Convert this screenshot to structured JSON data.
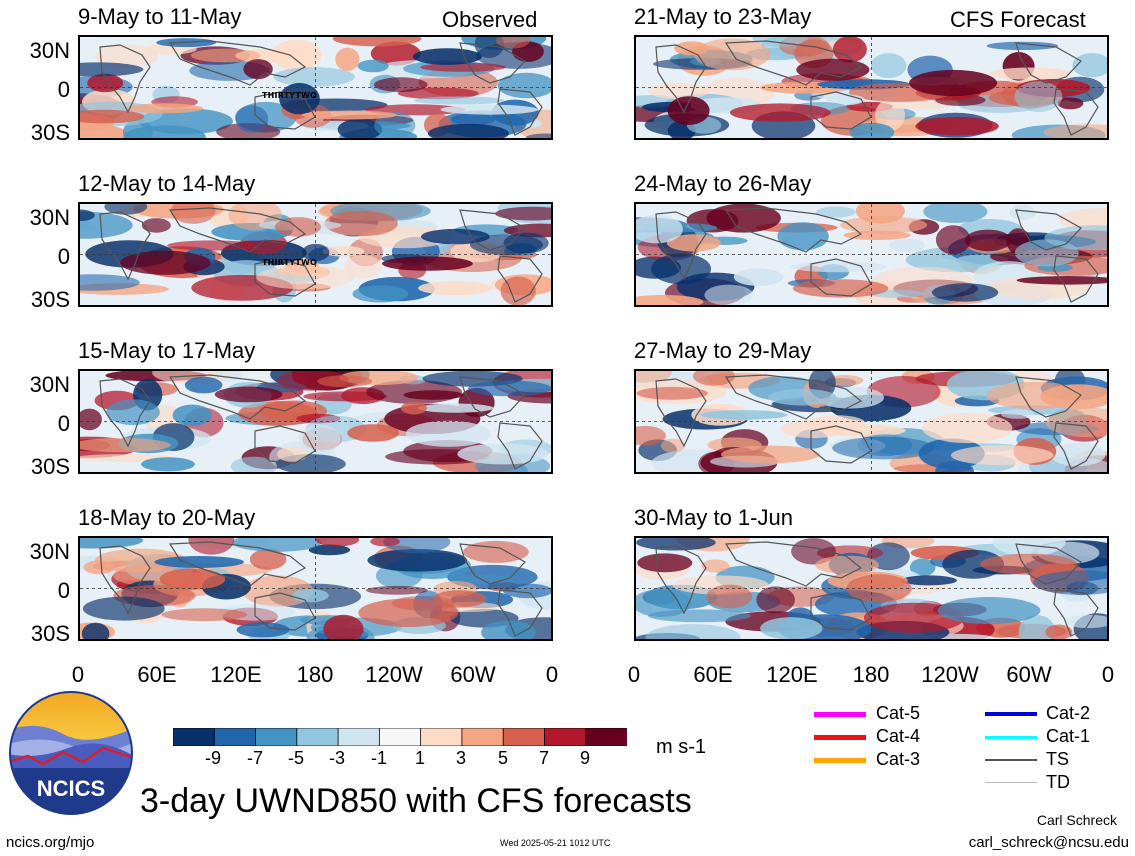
{
  "column_headers": {
    "observed": "Observed",
    "forecast": "CFS Forecast"
  },
  "observed_panels": [
    {
      "title": "9-May to 11-May",
      "storm": "THIRTYTWO"
    },
    {
      "title": "12-May to 14-May",
      "storm": "THIRTYTWO"
    },
    {
      "title": "15-May to 17-May",
      "storm": ""
    },
    {
      "title": "18-May to 20-May",
      "storm": ""
    }
  ],
  "forecast_panels": [
    {
      "title": "21-May to 23-May"
    },
    {
      "title": "24-May to 26-May"
    },
    {
      "title": "27-May to 29-May"
    },
    {
      "title": "30-May to 1-Jun"
    }
  ],
  "lat_labels": [
    "30N",
    "0",
    "30S"
  ],
  "lon_labels": [
    "0",
    "60E",
    "120E",
    "180",
    "120W",
    "60W",
    "0"
  ],
  "colorbar": {
    "ticks": [
      "-9",
      "-7",
      "-5",
      "-3",
      "-1",
      "1",
      "3",
      "5",
      "7",
      "9"
    ],
    "colors": [
      "#08306b",
      "#2166ac",
      "#4393c3",
      "#92c5de",
      "#d1e5f0",
      "#f7f7f7",
      "#fddbc7",
      "#f4a582",
      "#d6604d",
      "#b2182b",
      "#67001f"
    ],
    "units": "m s-1"
  },
  "legend": [
    {
      "label": "Cat-5",
      "color": "#ff00ff",
      "width": 5
    },
    {
      "label": "Cat-4",
      "color": "#ee1111",
      "width": 5
    },
    {
      "label": "Cat-3",
      "color": "#ffa500",
      "width": 5
    },
    {
      "label": "Cat-2",
      "color": "#0000dd",
      "width": 4
    },
    {
      "label": "Cat-1",
      "color": "#00ffff",
      "width": 3
    },
    {
      "label": "TS",
      "color": "#555555",
      "width": 2
    },
    {
      "label": "TD",
      "color": "#bbbbbb",
      "width": 1
    }
  ],
  "logo_text": "NCICS",
  "main_title": "3-day UWND850 with CFS forecasts",
  "author": "Carl Schreck",
  "email": "carl_schreck@ncsu.edu",
  "site": "ncics.org/mjo",
  "timestamp": "Wed 2025-05-21 1012 UTC"
}
